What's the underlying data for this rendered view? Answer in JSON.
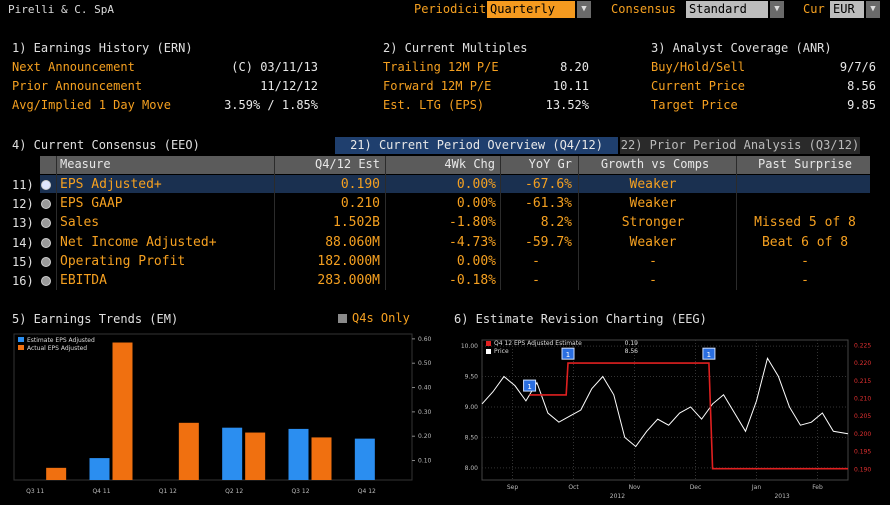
{
  "header": {
    "company": "Pirelli & C. SpA",
    "periodicity_label": "Periodicity",
    "periodicity_value": "Quarterly",
    "consensus_label": "Consensus",
    "consensus_value": "Standard",
    "currency_label": "Cur",
    "currency_value": "EUR"
  },
  "earnings_history": {
    "title": "1) Earnings History (ERN)",
    "rows": [
      {
        "label": "Next Announcement",
        "value": "(C)  03/11/13"
      },
      {
        "label": "Prior Announcement",
        "value": "11/12/12"
      },
      {
        "label": "Avg/Implied 1 Day Move",
        "value": "3.59% / 1.85%"
      }
    ]
  },
  "current_multiples": {
    "title": "2) Current Multiples",
    "rows": [
      {
        "label": "Trailing 12M P/E",
        "value": "8.20"
      },
      {
        "label": "Forward 12M P/E",
        "value": "10.11"
      },
      {
        "label": "Est. LTG (EPS)",
        "value": "13.52%"
      }
    ]
  },
  "analyst_coverage": {
    "title": "3) Analyst Coverage (ANR)",
    "rows": [
      {
        "label": "Buy/Hold/Sell",
        "value": "9/7/6"
      },
      {
        "label": "Current Price",
        "value": "8.56"
      },
      {
        "label": "Target Price",
        "value": "9.85"
      }
    ]
  },
  "consensus": {
    "title": "4) Current Consensus (EEO)",
    "tab_current": "21) Current Period Overview (Q4/12)",
    "tab_prior": "22) Prior Period Analysis (Q3/12)",
    "columns": [
      "Measure",
      "Q4/12 Est",
      "4Wk Chg",
      "YoY Gr",
      "Growth vs Comps",
      "Past Surprise"
    ],
    "rows": [
      {
        "idx": "11)",
        "measure": "EPS Adjusted+",
        "est": "0.190",
        "chg": "0.00%",
        "yoy": "-67.6%",
        "comps": "Weaker",
        "surprise": ""
      },
      {
        "idx": "12)",
        "measure": "EPS GAAP",
        "est": "0.210",
        "chg": "0.00%",
        "yoy": "-61.3%",
        "comps": "Weaker",
        "surprise": ""
      },
      {
        "idx": "13)",
        "measure": "Sales",
        "est": "1.502B",
        "chg": "-1.80%",
        "yoy": "8.2%",
        "comps": "Stronger",
        "surprise": "Missed 5 of 8"
      },
      {
        "idx": "14)",
        "measure": "Net Income Adjusted+",
        "est": "88.060M",
        "chg": "-4.73%",
        "yoy": "-59.7%",
        "comps": "Weaker",
        "surprise": "Beat 6 of 8"
      },
      {
        "idx": "15)",
        "measure": "Operating Profit",
        "est": "182.000M",
        "chg": "0.00%",
        "yoy": "-",
        "comps": "-",
        "surprise": "-"
      },
      {
        "idx": "16)",
        "measure": "EBITDA",
        "est": "283.000M",
        "chg": "-0.18%",
        "yoy": "-",
        "comps": "-",
        "surprise": "-"
      }
    ]
  },
  "earnings_trends": {
    "title": "5) Earnings Trends (EM)",
    "q4s_only": "Q4s Only"
  },
  "revision": {
    "title": "6) Estimate Revision Charting (EEG)"
  },
  "chart_data": [
    {
      "type": "bar",
      "categories": [
        "Q3 11",
        "Q4 11",
        "Q1 12",
        "Q2 12",
        "Q3 12",
        "Q4 12"
      ],
      "series": [
        {
          "name": "Estimate EPS Adjusted",
          "values": [
            null,
            0.11,
            null,
            0.235,
            0.23,
            0.19
          ],
          "color": "#2b8ef0"
        },
        {
          "name": "Actual EPS Adjusted",
          "values": [
            0.07,
            0.585,
            0.255,
            0.215,
            0.195,
            null
          ],
          "color": "#f07010"
        }
      ],
      "y_ticks": [
        "0.10",
        "0.20",
        "0.30",
        "0.40",
        "0.50",
        "0.60"
      ],
      "ylim": [
        0.02,
        0.62
      ],
      "legend": "top-left"
    },
    {
      "type": "line",
      "x_ticks": [
        "Sep",
        "Oct",
        "Nov",
        "Dec",
        "Jan",
        "Feb"
      ],
      "year_labels": [
        "2012",
        "2013"
      ],
      "left_ticks": [
        "8.00",
        "8.50",
        "9.00",
        "9.50",
        "10.00"
      ],
      "right_ticks": [
        "0.190",
        "0.195",
        "0.200",
        "0.205",
        "0.210",
        "0.215",
        "0.220",
        "0.225"
      ],
      "series": [
        {
          "name": "Q4 12 EPS Adjusted Estimate",
          "last": "0.19",
          "color": "#e02020",
          "values": [
            [
              0.13,
              0.211
            ],
            [
              0.23,
              0.211
            ],
            [
              0.235,
              0.22
            ],
            [
              0.62,
              0.22
            ],
            [
              0.63,
              0.1902
            ],
            [
              1.0,
              0.1902
            ]
          ]
        },
        {
          "name": "Price",
          "last": "8.56",
          "color": "#ffffff",
          "values": [
            [
              0.0,
              9.05
            ],
            [
              0.03,
              9.25
            ],
            [
              0.06,
              9.5
            ],
            [
              0.09,
              9.35
            ],
            [
              0.12,
              9.1
            ],
            [
              0.15,
              9.4
            ],
            [
              0.18,
              8.9
            ],
            [
              0.21,
              8.75
            ],
            [
              0.24,
              8.85
            ],
            [
              0.27,
              8.95
            ],
            [
              0.3,
              9.3
            ],
            [
              0.33,
              9.5
            ],
            [
              0.36,
              9.2
            ],
            [
              0.39,
              8.5
            ],
            [
              0.42,
              8.35
            ],
            [
              0.45,
              8.6
            ],
            [
              0.48,
              8.8
            ],
            [
              0.51,
              8.7
            ],
            [
              0.54,
              8.9
            ],
            [
              0.57,
              9.0
            ],
            [
              0.6,
              8.8
            ],
            [
              0.63,
              9.05
            ],
            [
              0.66,
              9.2
            ],
            [
              0.69,
              8.9
            ],
            [
              0.72,
              8.6
            ],
            [
              0.75,
              9.1
            ],
            [
              0.78,
              9.8
            ],
            [
              0.81,
              9.5
            ],
            [
              0.84,
              9.0
            ],
            [
              0.87,
              8.7
            ],
            [
              0.9,
              8.75
            ],
            [
              0.93,
              8.9
            ],
            [
              0.96,
              8.6
            ],
            [
              1.0,
              8.56
            ]
          ]
        }
      ],
      "markers": [
        "1",
        "1",
        "1"
      ],
      "left_ylim": [
        7.8,
        10.1
      ],
      "right_ylim": [
        0.187,
        0.2265
      ]
    }
  ]
}
